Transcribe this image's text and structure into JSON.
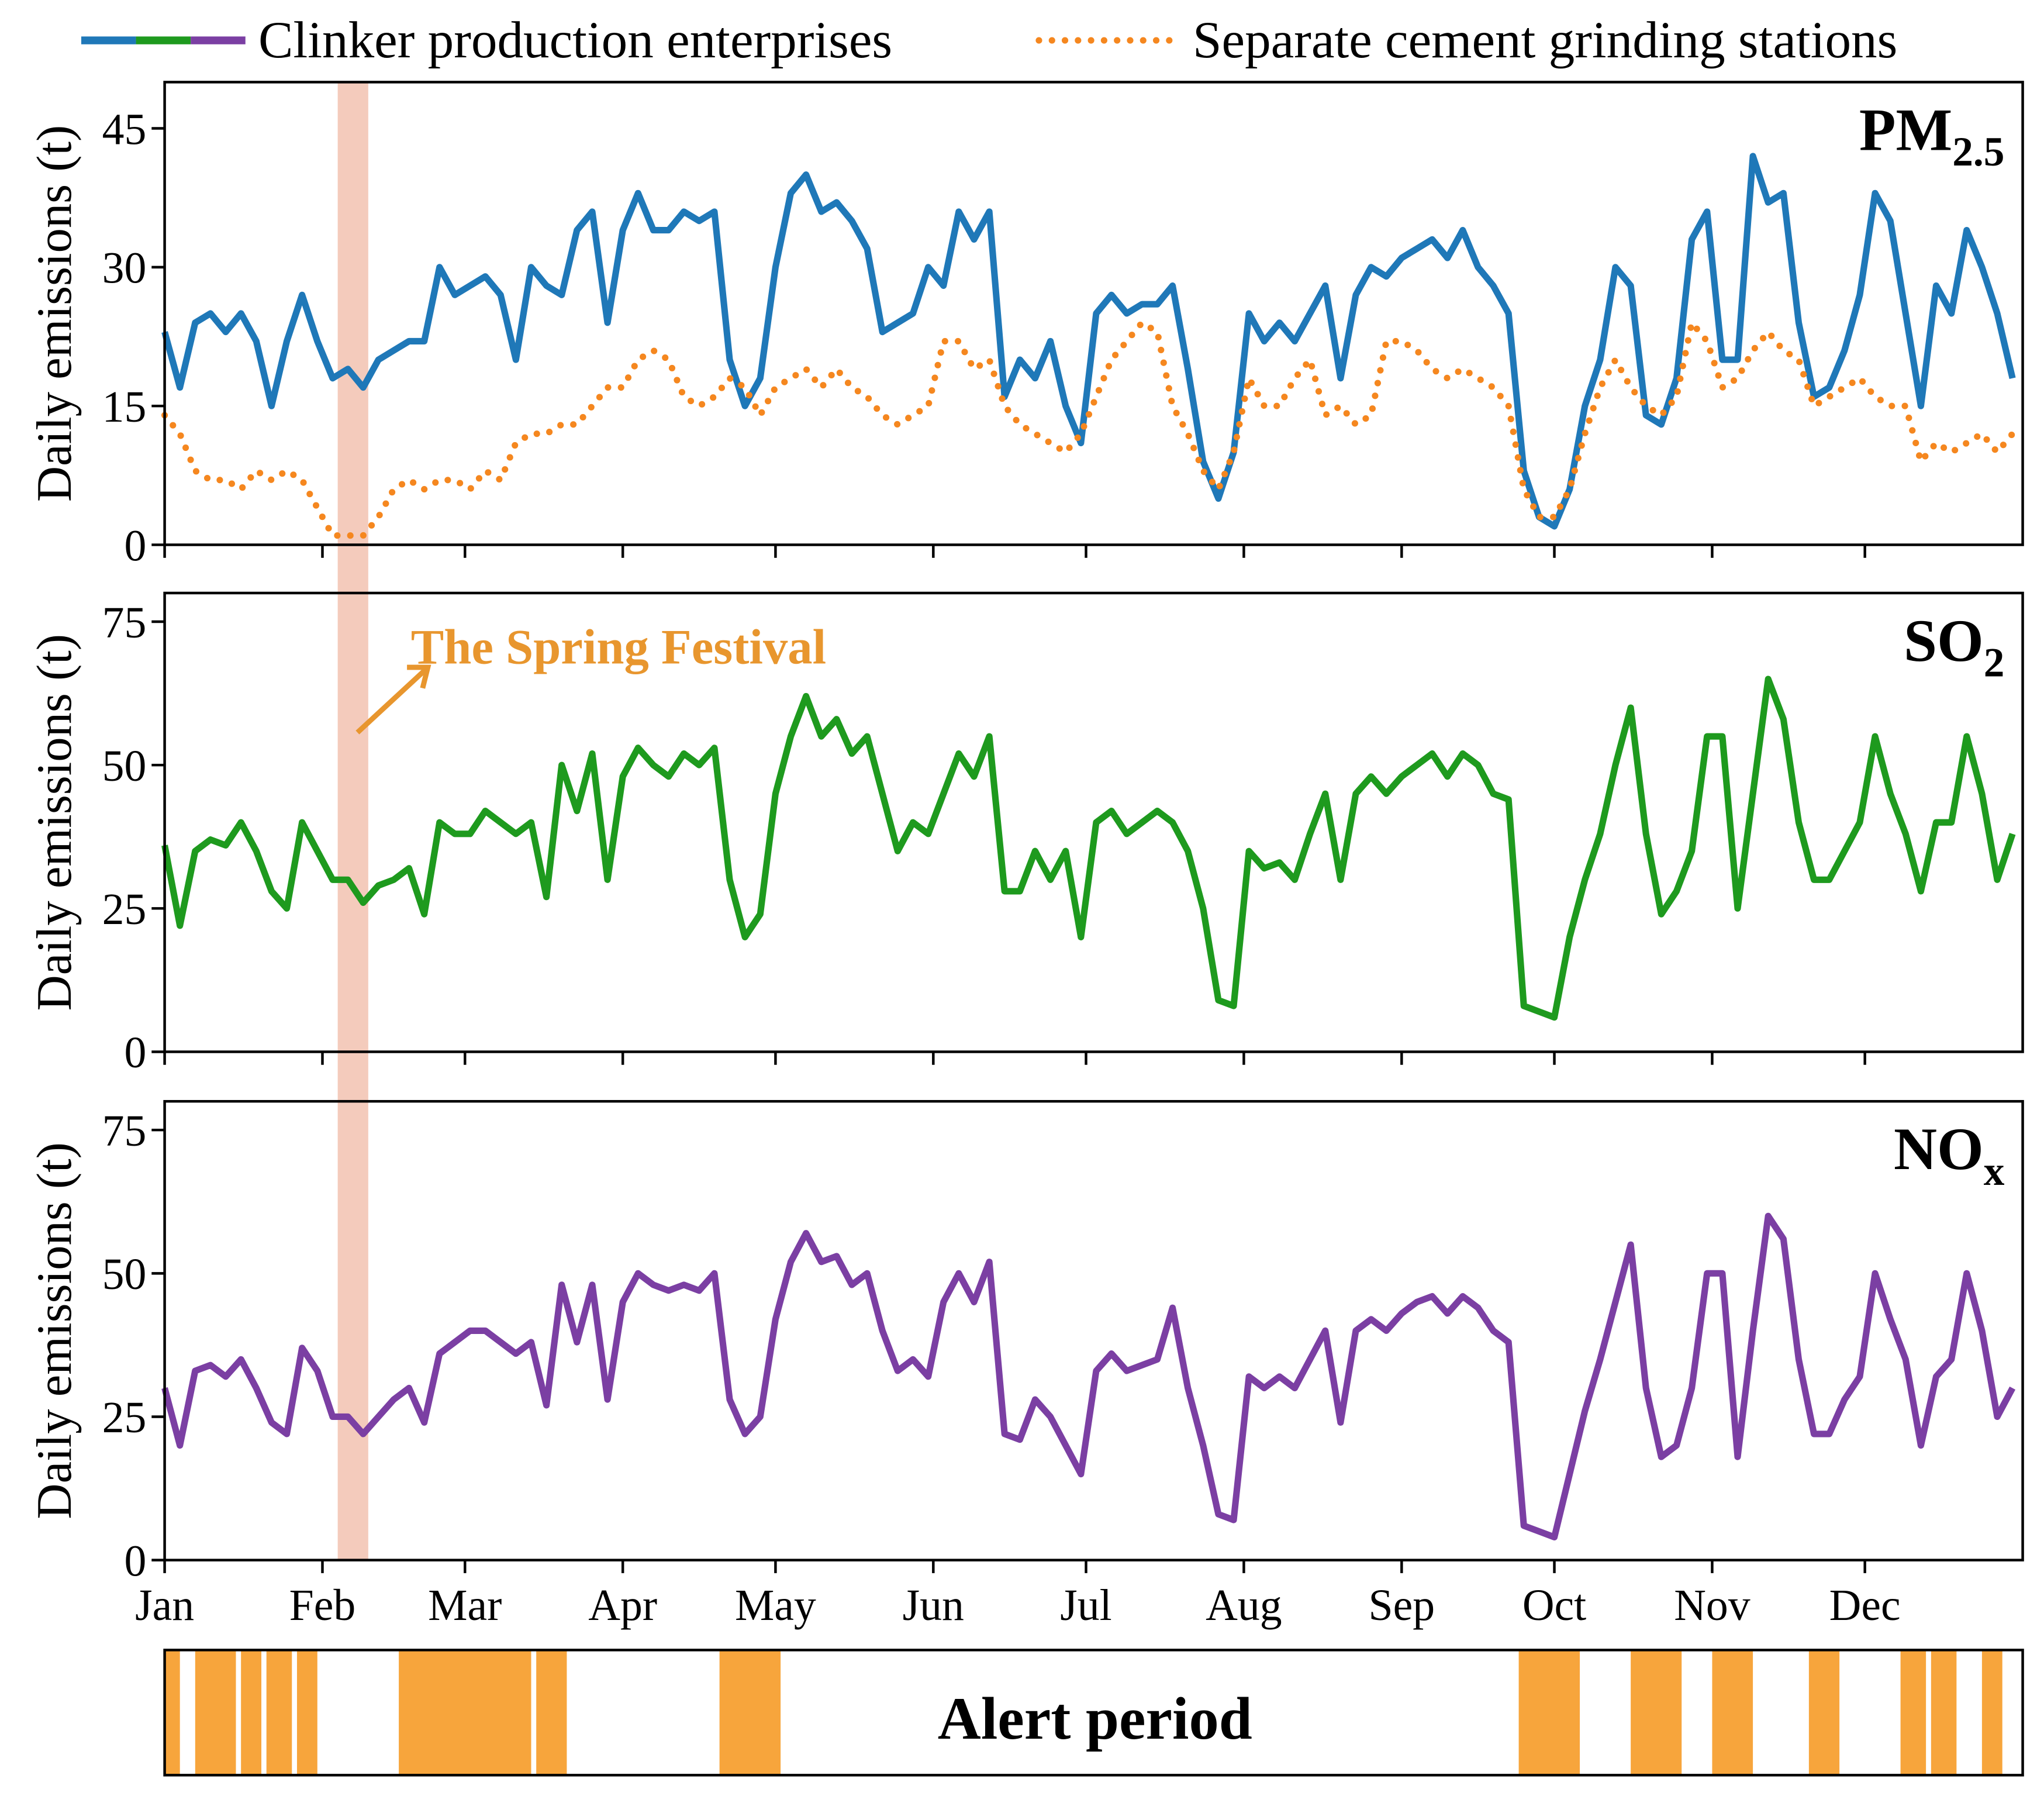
{
  "chart_data": [
    {
      "type": "line",
      "title": "PM",
      "title_sub": "2.5",
      "ylabel": "Daily emissions (t)",
      "x": [
        0,
        3,
        6,
        9,
        12,
        15,
        18,
        21,
        24,
        27,
        30,
        33,
        36,
        39,
        42,
        45,
        48,
        51,
        54,
        57,
        60,
        63,
        66,
        69,
        72,
        75,
        78,
        81,
        84,
        87,
        90,
        93,
        96,
        99,
        102,
        105,
        108,
        111,
        114,
        117,
        120,
        123,
        126,
        129,
        132,
        135,
        138,
        141,
        144,
        147,
        150,
        153,
        156,
        159,
        162,
        165,
        168,
        171,
        174,
        177,
        180,
        183,
        186,
        189,
        192,
        195,
        198,
        201,
        204,
        207,
        210,
        213,
        216,
        219,
        222,
        225,
        228,
        231,
        234,
        237,
        240,
        243,
        246,
        249,
        252,
        255,
        258,
        261,
        264,
        267,
        270,
        273,
        276,
        279,
        282,
        285,
        288,
        291,
        294,
        297,
        300,
        303,
        306,
        309,
        312,
        315,
        318,
        321,
        324,
        327,
        330,
        333,
        336,
        339,
        342,
        345,
        348,
        351,
        354,
        357,
        360,
        363
      ],
      "xlim": [
        0,
        365
      ],
      "xticks": [
        0,
        31,
        59,
        90,
        120,
        151,
        181,
        212,
        243,
        273,
        304,
        334
      ],
      "ylim": [
        0,
        50
      ],
      "yticks": [
        0,
        15,
        30,
        45
      ],
      "series": [
        {
          "name": "Clinker production enterprises",
          "color": "#1f78b8",
          "style": "solid",
          "values": [
            23,
            17,
            24,
            25,
            23,
            25,
            22,
            15,
            22,
            27,
            22,
            18,
            19,
            17,
            20,
            21,
            22,
            22,
            30,
            27,
            28,
            29,
            27,
            20,
            30,
            28,
            27,
            34,
            36,
            24,
            34,
            38,
            34,
            34,
            36,
            35,
            36,
            20,
            15,
            18,
            30,
            38,
            40,
            36,
            37,
            35,
            32,
            23,
            24,
            25,
            30,
            28,
            36,
            33,
            36,
            16,
            20,
            18,
            22,
            15,
            11,
            25,
            27,
            25,
            26,
            26,
            28,
            19,
            9,
            5,
            10,
            25,
            22,
            24,
            22,
            25,
            28,
            18,
            27,
            30,
            29,
            31,
            32,
            33,
            31,
            34,
            30,
            28,
            25,
            8,
            3,
            2,
            6,
            15,
            20,
            30,
            28,
            14,
            13,
            18,
            33,
            36,
            20,
            20,
            42,
            37,
            38,
            24,
            16,
            17,
            21,
            27,
            38,
            35,
            25,
            15,
            28,
            25,
            34,
            30,
            25,
            18
          ]
        },
        {
          "name": "Separate cement grinding stations",
          "color": "#f5871f",
          "style": "dotted",
          "values": [
            14,
            12,
            8,
            7,
            7,
            6,
            8,
            7,
            8,
            7,
            4,
            1,
            1,
            1,
            3,
            6,
            7,
            6,
            7,
            7,
            6,
            8,
            7,
            11,
            12,
            12,
            13,
            13,
            15,
            17,
            17,
            20,
            21,
            20,
            16,
            15,
            16,
            18,
            17,
            14,
            17,
            18,
            19,
            17,
            19,
            17,
            16,
            14,
            13,
            14,
            15,
            22,
            22,
            19,
            20,
            15,
            13,
            12,
            11,
            10,
            12,
            16,
            20,
            22,
            24,
            23,
            15,
            12,
            8,
            6,
            10,
            18,
            15,
            15,
            18,
            20,
            14,
            15,
            13,
            14,
            22,
            22,
            21,
            19,
            18,
            19,
            18,
            17,
            15,
            6,
            3,
            3,
            6,
            12,
            17,
            20,
            17,
            15,
            14,
            16,
            24,
            22,
            17,
            18,
            21,
            23,
            21,
            20,
            15,
            16,
            17,
            18,
            16,
            15,
            15,
            9,
            11,
            10,
            11,
            12,
            10,
            12
          ]
        }
      ]
    },
    {
      "type": "line",
      "title": "SO",
      "title_sub": "2",
      "ylabel": "Daily emissions (t)",
      "annotation": "The Spring Festival",
      "x": [
        0,
        3,
        6,
        9,
        12,
        15,
        18,
        21,
        24,
        27,
        30,
        33,
        36,
        39,
        42,
        45,
        48,
        51,
        54,
        57,
        60,
        63,
        66,
        69,
        72,
        75,
        78,
        81,
        84,
        87,
        90,
        93,
        96,
        99,
        102,
        105,
        108,
        111,
        114,
        117,
        120,
        123,
        126,
        129,
        132,
        135,
        138,
        141,
        144,
        147,
        150,
        153,
        156,
        159,
        162,
        165,
        168,
        171,
        174,
        177,
        180,
        183,
        186,
        189,
        192,
        195,
        198,
        201,
        204,
        207,
        210,
        213,
        216,
        219,
        222,
        225,
        228,
        231,
        234,
        237,
        240,
        243,
        246,
        249,
        252,
        255,
        258,
        261,
        264,
        267,
        270,
        273,
        276,
        279,
        282,
        285,
        288,
        291,
        294,
        297,
        300,
        303,
        306,
        309,
        312,
        315,
        318,
        321,
        324,
        327,
        330,
        333,
        336,
        339,
        342,
        345,
        348,
        351,
        354,
        357,
        360,
        363
      ],
      "xlim": [
        0,
        365
      ],
      "xticks": [
        0,
        31,
        59,
        90,
        120,
        151,
        181,
        212,
        243,
        273,
        304,
        334
      ],
      "ylim": [
        0,
        80
      ],
      "yticks": [
        0,
        25,
        50,
        75
      ],
      "series": [
        {
          "color": "#1e9a1e",
          "style": "solid",
          "values": [
            36,
            22,
            35,
            37,
            36,
            40,
            35,
            28,
            25,
            40,
            35,
            30,
            30,
            26,
            29,
            30,
            32,
            24,
            40,
            38,
            38,
            42,
            40,
            38,
            40,
            27,
            50,
            42,
            52,
            30,
            48,
            53,
            50,
            48,
            52,
            50,
            53,
            30,
            20,
            24,
            45,
            55,
            62,
            55,
            58,
            52,
            55,
            45,
            35,
            40,
            38,
            45,
            52,
            48,
            55,
            28,
            28,
            35,
            30,
            35,
            20,
            40,
            42,
            38,
            40,
            42,
            40,
            35,
            25,
            9,
            8,
            35,
            32,
            33,
            30,
            38,
            45,
            30,
            45,
            48,
            45,
            48,
            50,
            52,
            48,
            52,
            50,
            45,
            44,
            8,
            7,
            6,
            20,
            30,
            38,
            50,
            60,
            38,
            24,
            28,
            35,
            55,
            55,
            25,
            45,
            65,
            58,
            40,
            30,
            30,
            35,
            40,
            55,
            45,
            38,
            28,
            40,
            40,
            55,
            45,
            30,
            38
          ]
        }
      ]
    },
    {
      "type": "line",
      "title": "NO",
      "title_sub": "x",
      "ylabel": "Daily emissions (t)",
      "x": [
        0,
        3,
        6,
        9,
        12,
        15,
        18,
        21,
        24,
        27,
        30,
        33,
        36,
        39,
        42,
        45,
        48,
        51,
        54,
        57,
        60,
        63,
        66,
        69,
        72,
        75,
        78,
        81,
        84,
        87,
        90,
        93,
        96,
        99,
        102,
        105,
        108,
        111,
        114,
        117,
        120,
        123,
        126,
        129,
        132,
        135,
        138,
        141,
        144,
        147,
        150,
        153,
        156,
        159,
        162,
        165,
        168,
        171,
        174,
        177,
        180,
        183,
        186,
        189,
        192,
        195,
        198,
        201,
        204,
        207,
        210,
        213,
        216,
        219,
        222,
        225,
        228,
        231,
        234,
        237,
        240,
        243,
        246,
        249,
        252,
        255,
        258,
        261,
        264,
        267,
        270,
        273,
        276,
        279,
        282,
        285,
        288,
        291,
        294,
        297,
        300,
        303,
        306,
        309,
        312,
        315,
        318,
        321,
        324,
        327,
        330,
        333,
        336,
        339,
        342,
        345,
        348,
        351,
        354,
        357,
        360,
        363
      ],
      "xlim": [
        0,
        365
      ],
      "xticks": [
        {
          "value": 0,
          "label": "Jan"
        },
        {
          "value": 31,
          "label": "Feb"
        },
        {
          "value": 59,
          "label": "Mar"
        },
        {
          "value": 90,
          "label": "Apr"
        },
        {
          "value": 120,
          "label": "May"
        },
        {
          "value": 151,
          "label": "Jun"
        },
        {
          "value": 181,
          "label": "Jul"
        },
        {
          "value": 212,
          "label": "Aug"
        },
        {
          "value": 243,
          "label": "Sep"
        },
        {
          "value": 273,
          "label": "Oct"
        },
        {
          "value": 304,
          "label": "Nov"
        },
        {
          "value": 334,
          "label": "Dec"
        }
      ],
      "ylim": [
        0,
        80
      ],
      "yticks": [
        0,
        25,
        50,
        75
      ],
      "series": [
        {
          "color": "#7b3fa3",
          "style": "solid",
          "values": [
            30,
            20,
            33,
            34,
            32,
            35,
            30,
            24,
            22,
            37,
            33,
            25,
            25,
            22,
            25,
            28,
            30,
            24,
            36,
            38,
            40,
            40,
            38,
            36,
            38,
            27,
            48,
            38,
            48,
            28,
            45,
            50,
            48,
            47,
            48,
            47,
            50,
            28,
            22,
            25,
            42,
            52,
            57,
            52,
            53,
            48,
            50,
            40,
            33,
            35,
            32,
            45,
            50,
            45,
            52,
            22,
            21,
            28,
            25,
            20,
            15,
            33,
            36,
            33,
            34,
            35,
            44,
            30,
            20,
            8,
            7,
            32,
            30,
            32,
            30,
            35,
            40,
            24,
            40,
            42,
            40,
            43,
            45,
            46,
            43,
            46,
            44,
            40,
            38,
            6,
            5,
            4,
            15,
            26,
            35,
            45,
            55,
            30,
            18,
            20,
            30,
            50,
            50,
            18,
            40,
            60,
            56,
            35,
            22,
            22,
            28,
            32,
            50,
            42,
            35,
            20,
            32,
            35,
            50,
            40,
            25,
            30
          ]
        }
      ]
    }
  ],
  "highlight": {
    "xlim": [
      34,
      40
    ],
    "color": "#f2c2b0"
  },
  "alert_period": {
    "label": "Alert period",
    "color": "#f7a53c",
    "periods": [
      [
        0,
        3
      ],
      [
        6,
        14
      ],
      [
        15,
        19
      ],
      [
        20,
        25
      ],
      [
        26,
        30
      ],
      [
        46,
        72
      ],
      [
        73,
        79
      ],
      [
        109,
        121
      ],
      [
        266,
        278
      ],
      [
        288,
        298
      ],
      [
        304,
        312
      ],
      [
        323,
        329
      ],
      [
        341,
        346
      ],
      [
        347,
        352
      ],
      [
        357,
        361
      ]
    ]
  }
}
